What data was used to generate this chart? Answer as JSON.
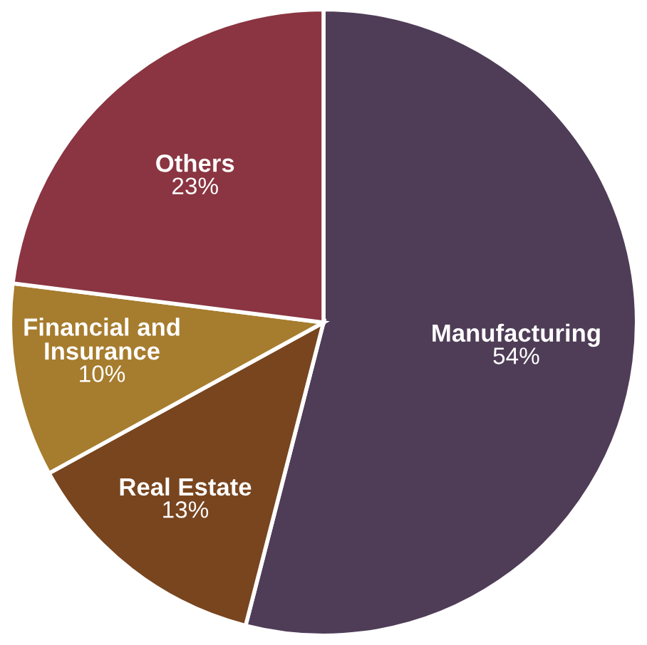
{
  "chart_data": {
    "type": "pie",
    "categories": [
      "Manufacturing",
      "Real Estate",
      "Financial and\nInsurance",
      "Others"
    ],
    "values": [
      54,
      13,
      10,
      23
    ],
    "value_labels": [
      "54%",
      "13%",
      "10%",
      "23%"
    ],
    "colors": [
      "#4f3d57",
      "#78451f",
      "#a67c2e",
      "#8a3541"
    ],
    "legend": false
  }
}
